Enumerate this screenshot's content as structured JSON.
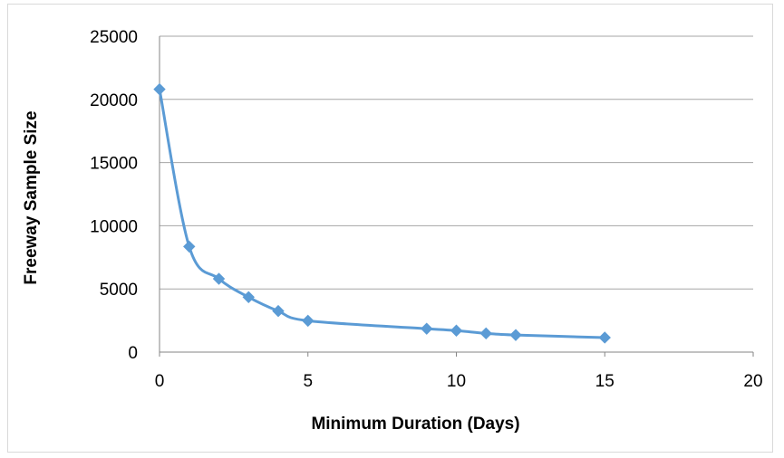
{
  "chart_data": {
    "type": "scatter",
    "title": "",
    "xlabel": "Minimum Duration (Days)",
    "ylabel": "Freeway Sample Size",
    "xlim": [
      0,
      20
    ],
    "ylim": [
      0,
      25000
    ],
    "x_ticks": [
      "0",
      "5",
      "10",
      "15",
      "20"
    ],
    "y_ticks": [
      "0",
      "5000",
      "10000",
      "15000",
      "20000",
      "25000"
    ],
    "grid": "horizontal",
    "legend": "none",
    "line": "smoothed",
    "series": [
      {
        "color": "#5b9bd5",
        "marker": "diamond",
        "x": [
          0,
          1,
          2,
          3,
          4,
          5,
          9,
          10,
          11,
          12,
          15
        ],
        "y": [
          20800,
          8350,
          5800,
          4350,
          3250,
          2480,
          1850,
          1700,
          1480,
          1350,
          1150
        ]
      }
    ]
  }
}
